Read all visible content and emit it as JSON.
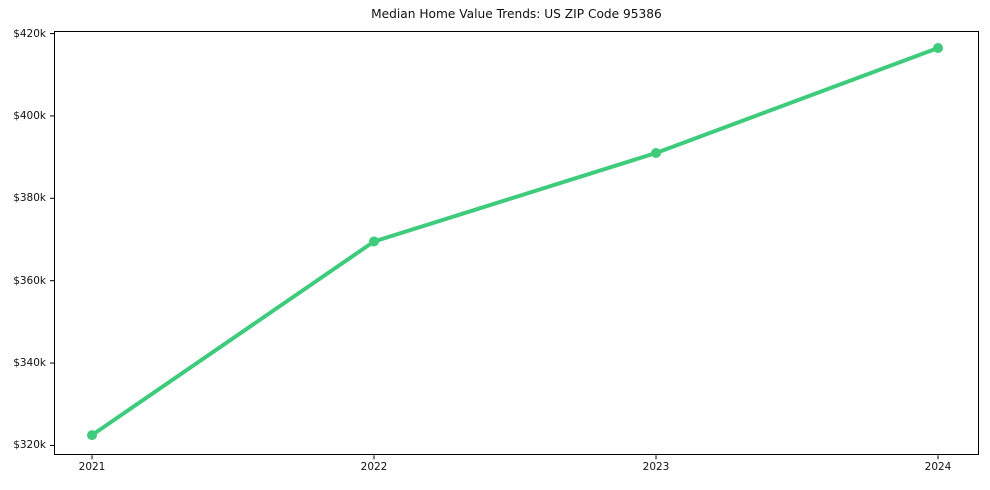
{
  "chart_data": {
    "type": "line",
    "title": "Median Home Value Trends: US ZIP Code 95386",
    "categories": [
      "2021",
      "2022",
      "2023",
      "2024"
    ],
    "series": [
      {
        "name": "Median Home Value",
        "values": [
          322500,
          369500,
          391000,
          416500
        ]
      }
    ],
    "xlabel": "",
    "ylabel": "",
    "y_axis": {
      "tick_values": [
        320000,
        340000,
        360000,
        380000,
        400000,
        420000
      ],
      "tick_labels": [
        "$320k",
        "$340k",
        "$360k",
        "$380k",
        "$400k",
        "$420k"
      ],
      "ylim": [
        317600,
        420550
      ]
    },
    "x_axis": {
      "tick_labels": [
        "2021",
        "2022",
        "2023",
        "2024"
      ]
    },
    "grid": false,
    "legend_position": "none",
    "line_color": "#3ecb7c",
    "marker_color": "#3ecb7c",
    "marker": "circle",
    "spine_color": "#000000",
    "background_color": "#ffffff"
  }
}
